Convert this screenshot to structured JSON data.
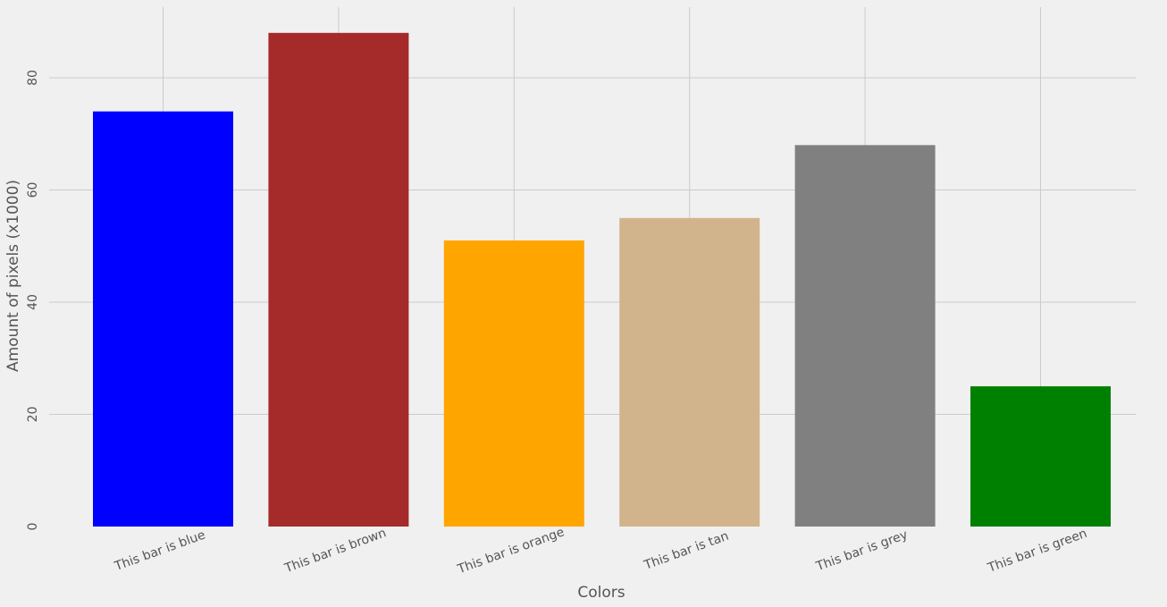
{
  "chart_data": {
    "type": "bar",
    "title": "",
    "xlabel": "Colors",
    "ylabel": "Amount of pixels (x1000)",
    "categories": [
      "This bar is blue",
      "This bar is brown",
      "This bar is orange",
      "This bar is tan",
      "This bar is grey",
      "This bar is green"
    ],
    "values": [
      74,
      88,
      51,
      55,
      68,
      25
    ],
    "colors": [
      "#0000ff",
      "#a52a2a",
      "#ffa500",
      "#d2b48c",
      "#808080",
      "#008000"
    ],
    "yticks": [
      0,
      20,
      40,
      60,
      80
    ],
    "ylim": [
      0,
      92
    ],
    "grid": true,
    "legend": "none"
  }
}
